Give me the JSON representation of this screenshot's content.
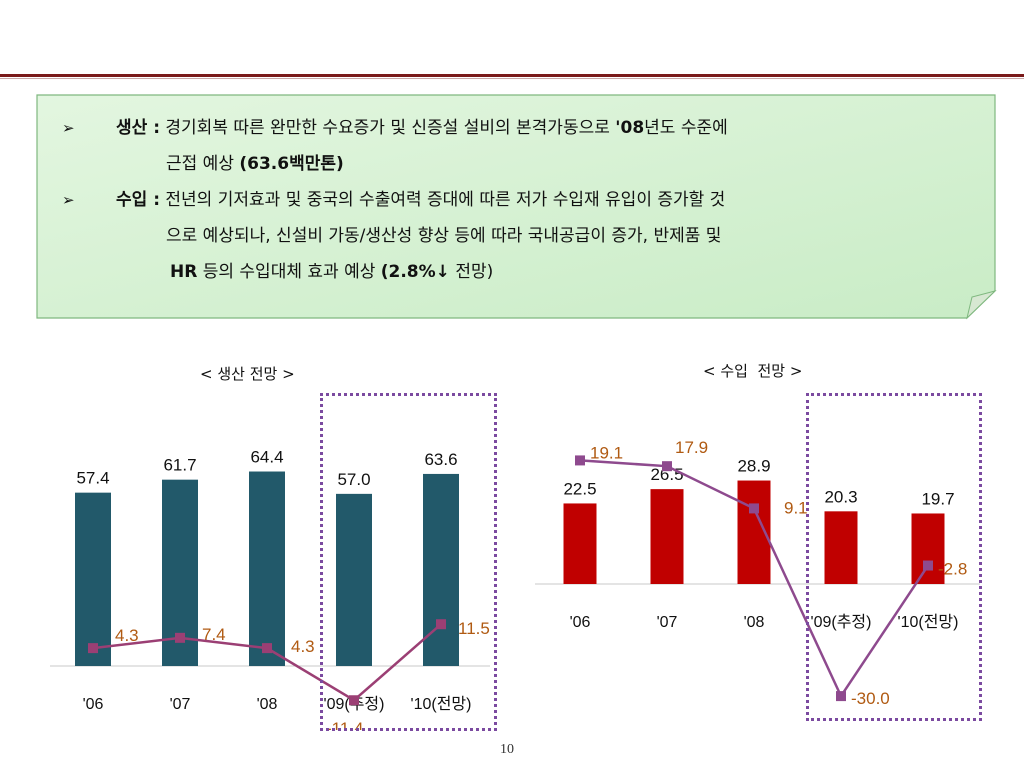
{
  "summary": {
    "items": [
      {
        "label": "생산 :",
        "line1": "경기회복 따른 완만한 수요증가 및 신증설 설비의 본격가동으로 ",
        "line1_bold": "'08",
        "line1_end": "년도 수준에",
        "line2": "근접 예상 ",
        "line2_bold": "(63.6",
        "line2_bold2": "백만톤)"
      },
      {
        "label": "수입 :",
        "line1": "전년의 기저효과 및 중국의 수출여력 증대에 따른 저가 수입재 유입이 증가할 것",
        "line2": "으로 예상되나, 신설비 가동/생산성 향상 등에 따라 국내공급이 증가,  반제품 및",
        "line3_bold": "HR",
        "line3": " 등의 수입대체 효과 예상 ",
        "line3_bold2": "(2.8%↓",
        "line3_end": " 전망)"
      }
    ]
  },
  "chart_data": [
    {
      "type": "bar",
      "title": "< 생산 전망 >",
      "categories": [
        "'06",
        "'07",
        "'08",
        "'09(추정)",
        "'10(전망)"
      ],
      "series": [
        {
          "type": "bar",
          "values": [
            57.4,
            61.7,
            64.4,
            57.0,
            63.6
          ],
          "labels": [
            "57.4",
            "61.7",
            "64.4",
            "57.0",
            "63.6"
          ]
        },
        {
          "type": "line",
          "values": [
            4.3,
            7.4,
            4.3,
            -11.4,
            11.5
          ],
          "labels": [
            "4.3",
            "7.4",
            "4.3",
            "-11.4",
            "11.5"
          ]
        }
      ],
      "colors": {
        "bar": "#22596a",
        "line": "#9b3f74",
        "line_label": "#b05a12"
      }
    },
    {
      "type": "bar",
      "title": "< 수입  전망 >",
      "categories": [
        "'06",
        "'07",
        "'08",
        "'09(추정)",
        "'10(전망)"
      ],
      "series": [
        {
          "type": "bar",
          "values": [
            22.5,
            26.5,
            28.9,
            20.3,
            19.7
          ],
          "labels": [
            "22.5",
            "26.5",
            "28.9",
            "20.3",
            "19.7"
          ]
        },
        {
          "type": "line",
          "values": [
            19.1,
            17.9,
            9.1,
            -30.0,
            -2.8
          ],
          "labels": [
            "19.1",
            "17.9",
            "9.1",
            "-30.0",
            "-2.8"
          ]
        }
      ],
      "colors": {
        "bar": "#c00000",
        "line": "#8e4a8e",
        "line_label": "#b05a12"
      }
    }
  ],
  "page_number": "10"
}
